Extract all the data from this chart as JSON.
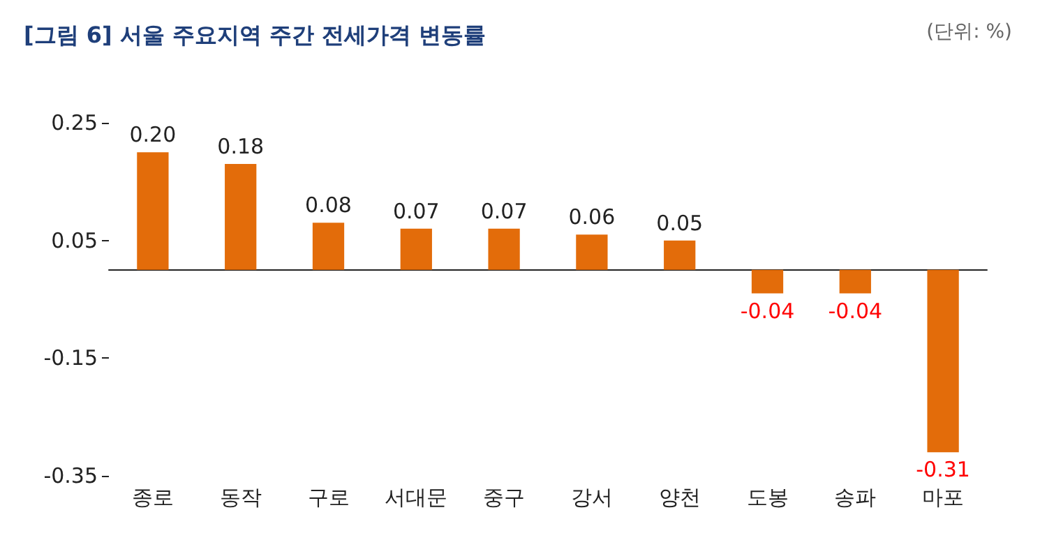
{
  "chart_data": {
    "type": "bar",
    "title": "[그림 6] 서울 주요지역 주간 전세가격 변동률",
    "annotations": [
      "(단위: %)"
    ],
    "categories": [
      "종로",
      "동작",
      "구로",
      "서대문",
      "중구",
      "강서",
      "양천",
      "도봉",
      "송파",
      "마포"
    ],
    "values": [
      0.2,
      0.18,
      0.08,
      0.07,
      0.07,
      0.06,
      0.05,
      -0.04,
      -0.04,
      -0.31
    ],
    "value_labels": [
      "0.20",
      "0.18",
      "0.08",
      "0.07",
      "0.07",
      "0.06",
      "0.05",
      "-0.04",
      "-0.04",
      "-0.31"
    ],
    "color": "#e36c0a",
    "ylim": [
      -0.35,
      0.25
    ],
    "yticks": [
      -0.35,
      -0.15,
      0.05,
      0.25
    ],
    "grid": false
  }
}
